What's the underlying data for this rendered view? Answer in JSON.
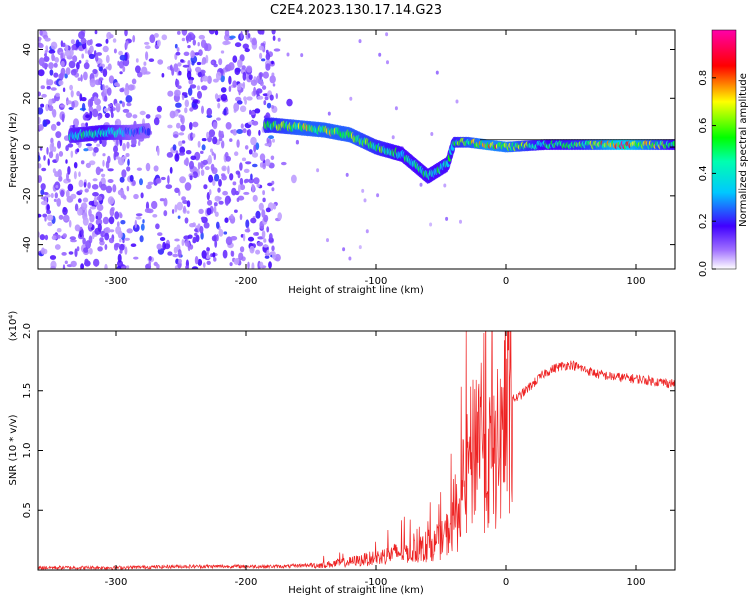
{
  "title": "C2E4.2023.130.17.14.G23",
  "chart_data": [
    {
      "type": "heatmap",
      "title": "C2E4.2023.130.17.14.G23",
      "xlabel": "Height of straight line (km)",
      "ylabel": "Frequency (Hz)",
      "xlim": [
        -360,
        130
      ],
      "ylim": [
        -50,
        48
      ],
      "x_ticks": [
        -300,
        -200,
        -100,
        0,
        100
      ],
      "y_ticks": [
        -40,
        -20,
        0,
        20,
        40
      ],
      "colorbar": {
        "label": "Normalized spectral amplitude",
        "range": [
          0,
          1
        ],
        "ticks": [
          "0.0",
          "0.2",
          "0.4",
          "0.6",
          "0.8"
        ],
        "colors": [
          "#ffffff",
          "#7000ff",
          "#0000ff",
          "#00ffff",
          "#00ff00",
          "#ffff00",
          "#ff0000",
          "#ff00ff"
        ]
      },
      "ridge": [
        {
          "x": -330,
          "freq": 5,
          "amp": 0.45
        },
        {
          "x": -310,
          "freq": 6,
          "amp": 0.5
        },
        {
          "x": -290,
          "freq": 6,
          "amp": 0.3
        },
        {
          "x": -270,
          "freq": 7,
          "amp": 0.25
        },
        {
          "x": -180,
          "freq": 9,
          "amp": 0.6
        },
        {
          "x": -160,
          "freq": 8,
          "amp": 0.7
        },
        {
          "x": -140,
          "freq": 7,
          "amp": 0.7
        },
        {
          "x": -120,
          "freq": 5,
          "amp": 0.7
        },
        {
          "x": -100,
          "freq": 0,
          "amp": 0.6
        },
        {
          "x": -80,
          "freq": -3,
          "amp": 0.5
        },
        {
          "x": -60,
          "freq": -12,
          "amp": 0.5
        },
        {
          "x": -45,
          "freq": -7,
          "amp": 0.5
        },
        {
          "x": -40,
          "freq": 2,
          "amp": 0.55
        },
        {
          "x": -30,
          "freq": 2,
          "amp": 0.65
        },
        {
          "x": -15,
          "freq": 1,
          "amp": 0.8
        },
        {
          "x": 0,
          "freq": 0,
          "amp": 0.75
        },
        {
          "x": 30,
          "freq": 1,
          "amp": 0.5
        },
        {
          "x": 60,
          "freq": 1,
          "amp": 0.6
        },
        {
          "x": 90,
          "freq": 1,
          "amp": 0.95
        },
        {
          "x": 130,
          "freq": 1,
          "amp": 0.5
        }
      ]
    },
    {
      "type": "line",
      "xlabel": "Height of straight line (km)",
      "ylabel": "SNR (10 * v/v)",
      "y_multiplier": "(x10⁴)",
      "xlim": [
        -360,
        130
      ],
      "ylim": [
        0,
        2.0
      ],
      "x_ticks": [
        -300,
        -200,
        -100,
        0,
        100
      ],
      "y_ticks": [
        0.5,
        1.0,
        1.5,
        2.0
      ],
      "y_tick_labels": [
        "0.5",
        "1.0",
        "1.5",
        "2.0"
      ],
      "color": "#ee2222",
      "series": [
        {
          "x": [
            -360,
            -300,
            -250,
            -200,
            -170,
            -140,
            -120,
            -100,
            -90,
            -80,
            -70,
            -60,
            -50,
            -40,
            -35,
            -30,
            -25,
            -22,
            -20,
            -18,
            -15,
            -10,
            -5,
            0,
            10,
            20,
            30,
            40,
            50,
            60,
            70,
            80,
            100,
            120,
            130
          ],
          "values": [
            0.02,
            0.02,
            0.03,
            0.03,
            0.03,
            0.05,
            0.08,
            0.12,
            0.15,
            0.18,
            0.18,
            0.22,
            0.28,
            0.45,
            0.7,
            1.0,
            1.25,
            1.45,
            1.6,
            1.25,
            1.15,
            1.15,
            1.3,
            1.4,
            1.45,
            1.55,
            1.65,
            1.7,
            1.72,
            1.68,
            1.64,
            1.62,
            1.6,
            1.57,
            1.56
          ]
        }
      ]
    }
  ]
}
